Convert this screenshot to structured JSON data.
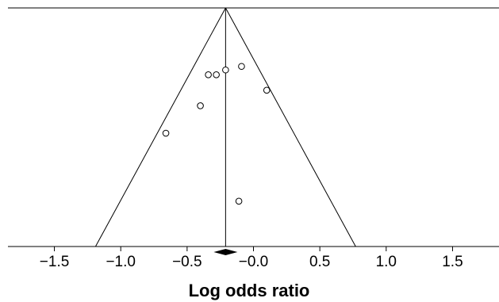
{
  "chart_data": {
    "type": "scatter",
    "title": "",
    "xlabel": "Log odds ratio",
    "ylabel": "",
    "xlim": [
      -1.85,
      1.85
    ],
    "ylim": [
      0,
      1
    ],
    "x_ticks": [
      -1.5,
      -1.0,
      -0.5,
      0.0,
      0.5,
      1.0,
      1.5
    ],
    "x_tick_labels": [
      "−1.5",
      "−1.0",
      "−0.5",
      "−0.0",
      "0.5",
      "1.0",
      "1.5"
    ],
    "pooled_estimate": -0.21,
    "funnel": {
      "apex": [
        -0.21,
        1.0
      ],
      "base_left": [
        -1.19,
        0.0
      ],
      "base_right": [
        0.77,
        0.0
      ]
    },
    "points": [
      {
        "x": -0.09,
        "y": 0.755
      },
      {
        "x": -0.21,
        "y": 0.74
      },
      {
        "x": -0.34,
        "y": 0.72
      },
      {
        "x": -0.28,
        "y": 0.72
      },
      {
        "x": 0.1,
        "y": 0.655
      },
      {
        "x": -0.4,
        "y": 0.59
      },
      {
        "x": -0.66,
        "y": 0.475
      },
      {
        "x": -0.11,
        "y": 0.19
      }
    ],
    "colors": {
      "line": "#000000",
      "point_stroke": "#000000",
      "point_fill": "#ffffff",
      "diamond": "#000000"
    }
  }
}
